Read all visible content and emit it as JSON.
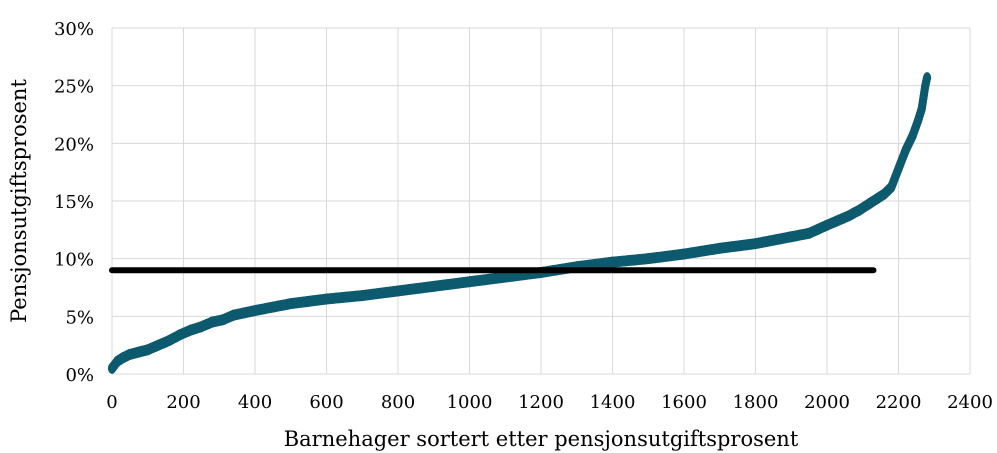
{
  "chart_data": {
    "type": "scatter",
    "title": "",
    "xlabel": "Barnehager sortert etter pensjonsutgiftsprosent",
    "ylabel": "Pensjonsutgiftsprosent",
    "xlim": [
      0,
      2400
    ],
    "ylim": [
      0,
      0.3
    ],
    "grid": true,
    "x_ticks": [
      "0",
      "200",
      "400",
      "600",
      "800",
      "1000",
      "1200",
      "1400",
      "1600",
      "1800",
      "2000",
      "2200",
      "2400"
    ],
    "y_ticks": [
      "0%",
      "5%",
      "10%",
      "15%",
      "20%",
      "25%",
      "30%"
    ],
    "series": [
      {
        "type": "scatter",
        "color": "#0d5a6e",
        "x": [
          0,
          15,
          30,
          50,
          75,
          100,
          130,
          160,
          190,
          220,
          250,
          280,
          310,
          340,
          370,
          400,
          450,
          500,
          550,
          600,
          700,
          800,
          900,
          1000,
          1100,
          1200,
          1300,
          1400,
          1500,
          1600,
          1700,
          1800,
          1900,
          1950,
          2000,
          2030,
          2060,
          2090,
          2120,
          2140,
          2160,
          2180,
          2200,
          2220,
          2240,
          2255,
          2265,
          2270,
          2275,
          2280
        ],
        "y": [
          0.005,
          0.011,
          0.014,
          0.017,
          0.019,
          0.021,
          0.025,
          0.029,
          0.034,
          0.038,
          0.041,
          0.045,
          0.047,
          0.051,
          0.053,
          0.055,
          0.058,
          0.061,
          0.063,
          0.065,
          0.068,
          0.072,
          0.076,
          0.08,
          0.084,
          0.088,
          0.093,
          0.097,
          0.1,
          0.104,
          0.109,
          0.113,
          0.119,
          0.122,
          0.129,
          0.133,
          0.137,
          0.142,
          0.148,
          0.152,
          0.156,
          0.162,
          0.178,
          0.194,
          0.207,
          0.22,
          0.23,
          0.24,
          0.25,
          0.257
        ]
      },
      {
        "type": "line",
        "color": "#000000",
        "x": [
          0,
          2130
        ],
        "y": [
          0.09,
          0.09
        ]
      }
    ]
  }
}
